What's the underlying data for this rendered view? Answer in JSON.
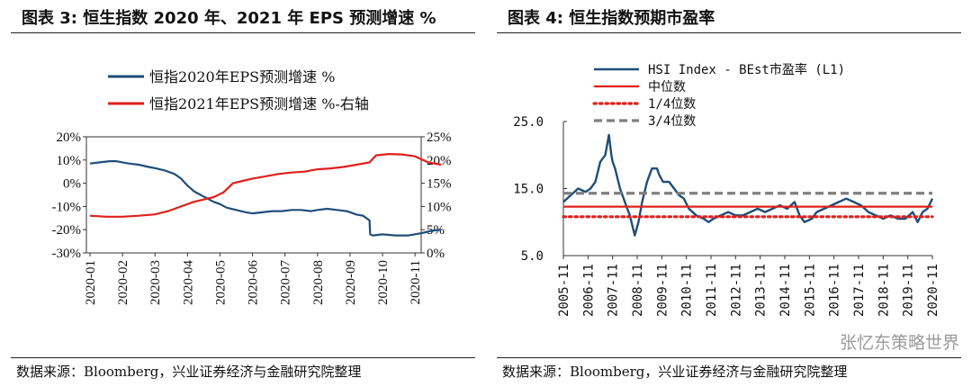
{
  "left": {
    "figure_title": "图表 3:  恒生指数 2020 年、2021 年 EPS 预测增速 %",
    "source": "数据来源：Bloomberg，兴业证券经济与金融研究院整理"
  },
  "right": {
    "figure_title": "图表 4:  恒生指数预期市盈率",
    "source": "数据来源：Bloomberg，兴业证券经济与金融研究院整理"
  },
  "watermark": "张忆东策略世界",
  "colors": {
    "navy": "#1f4e79",
    "red": "#e0201b",
    "gray": "#7f7f7f"
  },
  "chart_data": [
    {
      "type": "line",
      "x_tick_labels": [
        "2020-01",
        "2020-02",
        "2020-03",
        "2020-04",
        "2020-05",
        "2020-06",
        "2020-07",
        "2020-08",
        "2020-09",
        "2020-10",
        "2020-11"
      ],
      "ylim": [
        -30,
        20
      ],
      "y_tick_labels": [
        "20%",
        "10%",
        "0%",
        "-10%",
        "-20%",
        "-30%"
      ],
      "y2lim": [
        0,
        25
      ],
      "y2_tick_labels": [
        "25%",
        "20%",
        "15%",
        "10%",
        "5%",
        "0%"
      ],
      "legend_position": "top-left",
      "series": [
        {
          "name": "恒指2020年EPS预测增速    %",
          "axis": "left",
          "color": "#1f4e79",
          "x": [
            0,
            0.3,
            0.6,
            0.8,
            1.0,
            1.2,
            1.5,
            1.8,
            2.0,
            2.3,
            2.6,
            2.8,
            3.0,
            3.2,
            3.4,
            3.6,
            3.8,
            4.0,
            4.2,
            4.5,
            4.8,
            5.0,
            5.3,
            5.6,
            5.9,
            6.2,
            6.5,
            6.8,
            7.0,
            7.3,
            7.6,
            7.9,
            8.2,
            8.4,
            8.6,
            8.62,
            8.7,
            9.0,
            9.4,
            9.8,
            10.2,
            10.5,
            10.8
          ],
          "y": [
            8.5,
            9,
            9.5,
            9.5,
            9,
            8.5,
            8,
            7,
            6.5,
            5.5,
            4,
            2,
            -1,
            -3.5,
            -5,
            -6.5,
            -8,
            -9,
            -10.5,
            -11.5,
            -12.5,
            -13,
            -12.5,
            -12,
            -12,
            -11.5,
            -11.5,
            -12,
            -11.5,
            -11,
            -11.5,
            -12,
            -13.5,
            -14,
            -16,
            -22,
            -22.5,
            -22,
            -22.5,
            -22.5,
            -21.5,
            -20.5,
            -20
          ]
        },
        {
          "name": "恒指2021年EPS预测增速    %-右轴",
          "axis": "right",
          "color": "#e0201b",
          "x": [
            0,
            0.5,
            1.0,
            1.5,
            2.0,
            2.4,
            2.8,
            3.2,
            3.5,
            3.8,
            4.1,
            4.4,
            4.7,
            5.0,
            5.4,
            5.8,
            6.2,
            6.6,
            7.0,
            7.4,
            7.8,
            8.2,
            8.6,
            8.8,
            9.2,
            9.6,
            10.0,
            10.4,
            10.8
          ],
          "y": [
            8,
            7.8,
            7.8,
            8.0,
            8.3,
            9,
            10,
            11,
            11.5,
            12,
            13,
            15,
            15.5,
            16,
            16.5,
            17,
            17.3,
            17.5,
            18,
            18.2,
            18.5,
            19,
            19.5,
            21,
            21.3,
            21.2,
            20.8,
            19.5,
            19
          ]
        }
      ]
    },
    {
      "type": "line",
      "x_tick_labels": [
        "2005-11",
        "2006-11",
        "2007-11",
        "2008-11",
        "2009-11",
        "2010-11",
        "2011-11",
        "2012-11",
        "2013-11",
        "2014-11",
        "2015-11",
        "2016-11",
        "2017-11",
        "2018-11",
        "2019-11",
        "2020-11"
      ],
      "ylim": [
        5,
        25
      ],
      "y_tick_labels": [
        "25.0",
        "15.0",
        "5.0"
      ],
      "legend_position": "top",
      "series": [
        {
          "name": "HSI Index - BEst市盈率 (L1)",
          "style": "solid",
          "color": "#1f4e79",
          "x": [
            2005.9,
            2006.2,
            2006.5,
            2006.8,
            2007.0,
            2007.2,
            2007.4,
            2007.6,
            2007.75,
            2007.85,
            2007.9,
            2008.0,
            2008.2,
            2008.4,
            2008.6,
            2008.8,
            2008.95,
            2009.1,
            2009.3,
            2009.5,
            2009.7,
            2009.8,
            2009.95,
            2010.2,
            2010.4,
            2010.6,
            2010.8,
            2011.0,
            2011.3,
            2011.6,
            2011.8,
            2012.0,
            2012.3,
            2012.6,
            2012.9,
            2013.2,
            2013.5,
            2013.8,
            2014.1,
            2014.4,
            2014.7,
            2015.0,
            2015.3,
            2015.5,
            2015.7,
            2016.0,
            2016.2,
            2016.5,
            2016.8,
            2017.1,
            2017.4,
            2017.7,
            2018.0,
            2018.3,
            2018.6,
            2018.9,
            2019.2,
            2019.5,
            2019.8,
            2020.1,
            2020.3,
            2020.5,
            2020.7,
            2020.9
          ],
          "y": [
            13,
            14,
            15,
            14.5,
            15,
            16,
            19,
            20,
            23,
            20,
            19,
            18,
            15,
            13,
            11,
            8,
            10,
            13,
            16,
            18,
            18,
            17,
            16,
            16,
            15,
            14,
            13.5,
            12,
            11,
            10.5,
            10,
            10.5,
            11,
            11.5,
            11,
            11,
            11.5,
            12,
            11.5,
            12,
            12.5,
            12,
            13,
            11,
            10,
            10.5,
            11.5,
            12,
            12.5,
            13,
            13.5,
            13,
            12.5,
            11.5,
            11,
            10.5,
            11,
            10.5,
            10.5,
            11.5,
            10,
            11.5,
            12,
            13.5
          ]
        },
        {
          "name": "中位数",
          "style": "solid",
          "color": "#e0201b",
          "value": 12.3
        },
        {
          "name": "1/4位数",
          "style": "dotted",
          "color": "#e0201b",
          "value": 10.8
        },
        {
          "name": "3/4位数",
          "style": "dashed",
          "color": "#7f7f7f",
          "value": 14.3
        }
      ]
    }
  ]
}
